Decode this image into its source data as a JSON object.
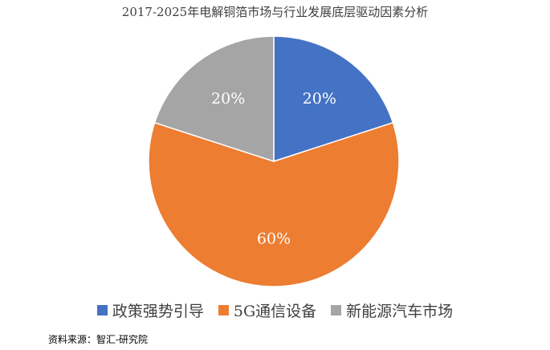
{
  "chart_data": {
    "type": "pie",
    "title": "2017-2025年电解铜箔市场与行业发展底层驱动因素分析",
    "categories": [
      "政策强势引导",
      "5G通信设备",
      "新能源汽车市场"
    ],
    "values": [
      20,
      60,
      20
    ],
    "data_labels": [
      "20%",
      "60%",
      "20%"
    ],
    "colors": [
      "#4472C4",
      "#ED7D31",
      "#A5A5A5"
    ],
    "legend_position": "bottom",
    "start_angle": "12-o'clock",
    "direction": "clockwise"
  },
  "source": "资料来源：智汇-研究院"
}
